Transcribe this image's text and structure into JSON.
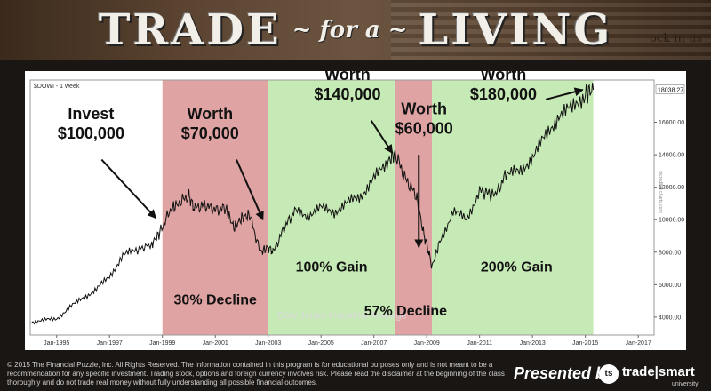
{
  "banner": {
    "word1": "TRADE",
    "word2": "~ for a ~",
    "word3": "LIVING",
    "side_text": "ock in us"
  },
  "chart_data": {
    "type": "line",
    "symbol_label": "$DOWI - 1 week",
    "watermark": "Dow Jones Industrial Average",
    "x_ticks": [
      "Jan-1995",
      "Jan-1997",
      "Jan-1999",
      "Jan-2001",
      "Jan-2003",
      "Jan-2005",
      "Jan-2007",
      "Jan-2009",
      "Jan-2011",
      "Jan-2013",
      "Jan-2015",
      "Jan-2017"
    ],
    "y_ticks": [
      "4000.00",
      "6000.00",
      "8000.00",
      "10000.00",
      "12000.00",
      "14000.00",
      "16000.00"
    ],
    "last_value_label": "18038.27",
    "source_note": "incredible charts.com",
    "xlim": [
      1994.0,
      2017.6
    ],
    "ylim": [
      2900,
      18600
    ],
    "series": [
      {
        "x": [
          1994.0,
          1994.5,
          1995.0,
          1995.5,
          1996.0,
          1996.5,
          1997.0,
          1997.5,
          1998.0,
          1998.6,
          1998.9,
          1999.3,
          1999.6,
          2000.0,
          2000.2,
          2000.6,
          2001.0,
          2001.4,
          2001.7,
          2002.0,
          2002.3,
          2002.7,
          2003.0,
          2003.2,
          2003.6,
          2004.0,
          2004.5,
          2005.0,
          2005.5,
          2006.0,
          2006.5,
          2007.0,
          2007.5,
          2007.8,
          2008.2,
          2008.6,
          2008.9,
          2009.0,
          2009.2,
          2009.5,
          2010.0,
          2010.5,
          2011.0,
          2011.6,
          2012.0,
          2012.5,
          2013.0,
          2013.5,
          2014.0,
          2014.5,
          2015.0,
          2015.3
        ],
        "y": [
          3700,
          3800,
          3900,
          4600,
          5200,
          5700,
          6500,
          7800,
          8100,
          8500,
          9200,
          10600,
          11000,
          11500,
          10700,
          10900,
          10600,
          10700,
          9500,
          10100,
          10300,
          8000,
          8300,
          8000,
          9500,
          10500,
          10300,
          10700,
          10500,
          11000,
          11500,
          12500,
          13500,
          14100,
          12500,
          11500,
          9000,
          8500,
          7100,
          8700,
          10500,
          10000,
          11800,
          11500,
          12800,
          12900,
          13900,
          15100,
          16500,
          16800,
          17800,
          18000
        ]
      }
    ],
    "shaded_regions": [
      {
        "start": 1999.0,
        "end": 2003.0,
        "color": "#e0a3a3"
      },
      {
        "start": 2003.0,
        "end": 2007.8,
        "color": "#c6eab5"
      },
      {
        "start": 2007.8,
        "end": 2009.2,
        "color": "#e0a3a3"
      },
      {
        "start": 2009.2,
        "end": 2015.3,
        "color": "#c6eab5"
      }
    ],
    "annotations": [
      {
        "id": "invest",
        "lines": [
          "Invest",
          "$100,000"
        ],
        "label_x": 1996.3,
        "label_y": 16200,
        "arrow_from": [
          1996.7,
          13700
        ],
        "arrow_to": [
          1998.75,
          10100
        ]
      },
      {
        "id": "worth70",
        "lines": [
          "Worth",
          "$70,000"
        ],
        "label_x": 2000.8,
        "label_y": 16200,
        "arrow_from": [
          2001.8,
          13700
        ],
        "arrow_to": [
          2002.8,
          10000
        ]
      },
      {
        "id": "worth140",
        "lines": [
          "Worth",
          "$140,000"
        ],
        "label_x": 2006.0,
        "label_y": 18600,
        "arrow_from": [
          2006.9,
          16100
        ],
        "arrow_to": [
          2007.7,
          14100
        ]
      },
      {
        "id": "worth60",
        "lines": [
          "Worth",
          "$60,000"
        ],
        "label_x": 2008.9,
        "label_y": 16500,
        "arrow_from": [
          2008.7,
          14000
        ],
        "arrow_to": [
          2008.7,
          8300
        ]
      },
      {
        "id": "worth180",
        "lines": [
          "Worth",
          "$180,000"
        ],
        "label_x": 2011.9,
        "label_y": 18600,
        "arrow_from": [
          2013.5,
          17400
        ],
        "arrow_to": [
          2014.9,
          18000
        ]
      }
    ],
    "gain_labels": [
      {
        "id": "decline30",
        "text": "30% Decline",
        "x": 2001.0,
        "y": 4800
      },
      {
        "id": "gain100",
        "text": "100% Gain",
        "x": 2005.4,
        "y": 6800
      },
      {
        "id": "decline57",
        "text": "57% Decline",
        "x": 2008.2,
        "y": 4100
      },
      {
        "id": "gain200",
        "text": "200% Gain",
        "x": 2012.4,
        "y": 6800
      }
    ]
  },
  "footer": {
    "disclaimer": "© 2015 The Financial Puzzle, Inc. All Rights Reserved. The information contained in this program is for educational purposes only and is not meant to be a recommendation for any specific investment. Trading stock, options and foreign currency involves risk. Please read the disclaimer at the beginning of the class thoroughly and do not trade real money without fully understanding all possible financial outcomes.",
    "presented_by": "Presented by:",
    "logo_text": "ts",
    "brand": "trade|smart",
    "brand_sub": "university"
  },
  "colors": {
    "red_zone": "#e0a3a3",
    "green_zone": "#c6eab5",
    "price_line": "#111111"
  }
}
